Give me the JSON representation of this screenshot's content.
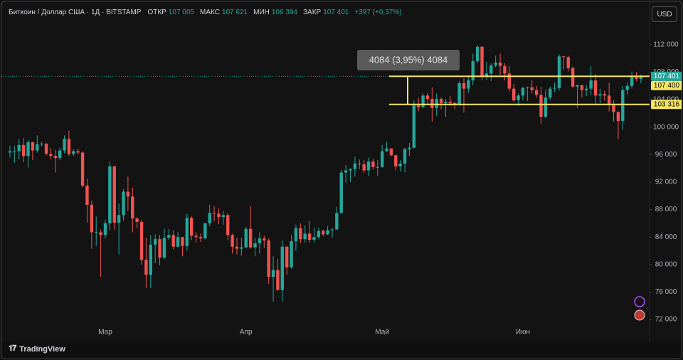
{
  "header": {
    "symbol": "Биткоин / Доллар США · 1Д · BITSTAMP",
    "open_label": "ОТКР",
    "open": "107 005",
    "high_label": "МАКС",
    "high": "107 621",
    "low_label": "МИН",
    "low": "106 394",
    "close_label": "ЗАКР",
    "close": "107 401",
    "change": "+397 (+0,37%)"
  },
  "currency": "USD",
  "brand": "TradingView",
  "chart_data": {
    "type": "candlestick",
    "categories": [
      null,
      null,
      null,
      null,
      null,
      null,
      null,
      null,
      null,
      null,
      null,
      null,
      null,
      null,
      null,
      null,
      null,
      null,
      null,
      null,
      null,
      "Мар",
      null,
      null,
      null,
      null,
      null,
      null,
      null,
      null,
      null,
      null,
      null,
      null,
      null,
      null,
      null,
      null,
      null,
      null,
      null,
      null,
      null,
      null,
      null,
      null,
      null,
      null,
      null,
      null,
      null,
      null,
      "Апр",
      null,
      null,
      null,
      null,
      null,
      null,
      null,
      null,
      null,
      null,
      null,
      null,
      null,
      null,
      null,
      null,
      null,
      null,
      null,
      null,
      null,
      null,
      null,
      null,
      null,
      null,
      null,
      null,
      null,
      "Май",
      null,
      null,
      null,
      null,
      null,
      null,
      null,
      null,
      null,
      null,
      null,
      null,
      null,
      null,
      null,
      null,
      null,
      null,
      null,
      null,
      null,
      null,
      null,
      null,
      null,
      null,
      null,
      null,
      null,
      null,
      "Июн",
      null,
      null,
      null,
      null,
      null,
      null,
      null,
      null,
      null,
      null,
      null,
      null,
      null,
      null,
      null,
      null,
      null,
      null,
      null,
      null,
      null,
      null,
      null,
      null,
      null,
      null
    ],
    "open": [
      96300,
      96500,
      96500,
      97400,
      95800,
      97800,
      96600,
      97500,
      97600,
      96100,
      95800,
      95500,
      96600,
      98300,
      96100,
      96500,
      96300,
      91500,
      88700,
      84700,
      84700,
      84300,
      86000,
      94300,
      86100,
      87200,
      90600,
      89900,
      86700,
      86200,
      80700,
      78500,
      82900,
      83700,
      81000,
      83900,
      84300,
      82600,
      84000,
      82700,
      86800,
      84200,
      84000,
      83800,
      86000,
      87500,
      87400,
      86900,
      87200,
      84300,
      82600,
      82300,
      82500,
      85200,
      82500,
      83100,
      83800,
      83500,
      78200,
      79200,
      76300,
      82600,
      79600,
      83400,
      85300,
      83700,
      84500,
      83600,
      84000,
      84900,
      84400,
      85000,
      85100,
      87500,
      93400,
      93700,
      93900,
      94700,
      94600,
      93700,
      95000,
      94200,
      94200,
      96500,
      96900,
      95900,
      94300,
      94700,
      96800,
      97000,
      103200,
      102900,
      104600,
      104100,
      102800,
      104100,
      103500,
      103700,
      103500,
      103200,
      106400,
      105600,
      106800,
      109600,
      111700,
      107300,
      107800,
      109000,
      109400,
      108900,
      107800,
      105600,
      103900,
      104600,
      105700,
      105800,
      105400,
      104700,
      101500,
      104300,
      105600,
      105700,
      110300,
      110200,
      108600,
      105900,
      106100,
      105400,
      105600,
      106800,
      104600,
      104800,
      104600,
      103300,
      102200,
      100900,
      105400,
      106000,
      107300,
      107005
    ],
    "high": [
      97300,
      97300,
      98300,
      98400,
      98100,
      97900,
      98800,
      97900,
      97700,
      97000,
      96700,
      97000,
      98800,
      99500,
      96800,
      96900,
      96500,
      92500,
      89300,
      87000,
      85100,
      86500,
      95000,
      94400,
      88900,
      91000,
      92800,
      91200,
      86900,
      86500,
      83900,
      84300,
      84400,
      84300,
      85200,
      85200,
      85000,
      84700,
      84000,
      87400,
      87000,
      84700,
      84500,
      86100,
      88700,
      88500,
      88200,
      87800,
      87500,
      84500,
      83900,
      83900,
      85500,
      88500,
      83900,
      84700,
      84200,
      83800,
      81200,
      80800,
      83500,
      82700,
      84300,
      85800,
      86000,
      85700,
      86400,
      85400,
      85400,
      85100,
      85600,
      85300,
      88400,
      93800,
      94500,
      94000,
      95700,
      95300,
      95200,
      95600,
      95400,
      95200,
      97400,
      97900,
      96900,
      96000,
      95200,
      97000,
      97700,
      103900,
      104300,
      104900,
      105000,
      105800,
      104900,
      104300,
      104100,
      104500,
      103700,
      106700,
      107100,
      107500,
      110700,
      111900,
      111800,
      109500,
      109300,
      110400,
      110700,
      109300,
      108900,
      106300,
      104900,
      105900,
      105900,
      106800,
      106000,
      105900,
      105400,
      105900,
      106500,
      110600,
      110400,
      110400,
      108800,
      106200,
      106200,
      106100,
      108900,
      107700,
      105600,
      105300,
      106500,
      103900,
      102300,
      106000,
      106500,
      108100,
      108000,
      107621
    ],
    "low": [
      95600,
      94800,
      95300,
      94900,
      94100,
      95200,
      96300,
      97200,
      95900,
      95300,
      93400,
      95200,
      96200,
      95800,
      95800,
      96000,
      91200,
      86100,
      82300,
      82700,
      78200,
      83800,
      85000,
      85100,
      81500,
      86400,
      87800,
      84700,
      85300,
      80000,
      76600,
      76600,
      80200,
      79900,
      80800,
      83600,
      82200,
      82500,
      81200,
      82000,
      83600,
      83200,
      83300,
      83700,
      85600,
      86300,
      85900,
      85800,
      83500,
      81600,
      81500,
      81300,
      82400,
      82300,
      81200,
      81600,
      82400,
      77200,
      74600,
      76200,
      74600,
      78500,
      79400,
      82000,
      83100,
      83200,
      83200,
      83100,
      83700,
      84100,
      84300,
      83900,
      85100,
      87500,
      91900,
      92000,
      92800,
      93900,
      93300,
      92900,
      93800,
      92900,
      94100,
      96400,
      95800,
      93700,
      93500,
      93400,
      95800,
      96900,
      102300,
      102800,
      103400,
      100800,
      101600,
      102600,
      101500,
      103100,
      102600,
      103100,
      102100,
      105000,
      106100,
      109300,
      106800,
      106900,
      106700,
      108700,
      107600,
      106800,
      105200,
      103700,
      103100,
      103900,
      103800,
      104900,
      104300,
      100400,
      101300,
      103900,
      105100,
      105300,
      108400,
      108100,
      105700,
      102800,
      104300,
      104500,
      104700,
      103400,
      103500,
      103900,
      102300,
      100800,
      98200,
      99600,
      104700,
      105600,
      106700,
      106394
    ],
    "close": [
      96500,
      96500,
      97400,
      95800,
      97800,
      96600,
      97500,
      97600,
      96100,
      95800,
      95500,
      96600,
      98300,
      96100,
      96500,
      96300,
      91500,
      88700,
      84700,
      84700,
      84300,
      86000,
      94300,
      86100,
      87200,
      90600,
      89900,
      86700,
      86200,
      80700,
      78500,
      82900,
      83700,
      81000,
      83900,
      84300,
      82600,
      84000,
      82700,
      86800,
      84200,
      84000,
      83800,
      86000,
      87500,
      87400,
      86900,
      87200,
      84300,
      82600,
      82300,
      82500,
      85200,
      82500,
      83100,
      83800,
      83500,
      78200,
      79200,
      76300,
      82600,
      79600,
      83400,
      85300,
      83700,
      84500,
      83600,
      84000,
      84900,
      84400,
      85000,
      85100,
      87500,
      93400,
      93700,
      93900,
      94700,
      94600,
      93700,
      95000,
      94200,
      94200,
      96500,
      96900,
      95900,
      94300,
      94700,
      96800,
      97000,
      103200,
      102900,
      104600,
      104100,
      102800,
      104100,
      103500,
      103700,
      103500,
      103200,
      106400,
      105600,
      106800,
      109600,
      111700,
      107300,
      107800,
      109000,
      109400,
      108900,
      107800,
      105600,
      103900,
      104600,
      105700,
      105800,
      105400,
      104700,
      101500,
      104300,
      105600,
      105700,
      110300,
      110200,
      108600,
      105900,
      106100,
      105400,
      105600,
      106800,
      104600,
      104800,
      104600,
      103300,
      102200,
      100900,
      105400,
      106000,
      107300,
      107005,
      107401
    ],
    "up_color": "#26a69a",
    "down_color": "#ef5350",
    "ylim": [
      68800,
      118300
    ],
    "yticks": [
      {
        "value": 72000,
        "label": "72 000"
      },
      {
        "value": 76000,
        "label": "76 000"
      },
      {
        "value": 80000,
        "label": "80 000"
      },
      {
        "value": 84000,
        "label": "84 000"
      },
      {
        "value": 88000,
        "label": "88 000"
      },
      {
        "value": 92000,
        "label": "92 000"
      },
      {
        "value": 96000,
        "label": "96 000"
      },
      {
        "value": 100000,
        "label": "100 000"
      },
      {
        "value": 104000,
        "label": "104 000"
      },
      {
        "value": 108000,
        "label": "108 000"
      },
      {
        "value": 112000,
        "label": "112 000"
      }
    ],
    "last_price": {
      "value": 107401,
      "label": "107 401"
    },
    "levels": [
      {
        "value": 107400,
        "label": "107 400"
      },
      {
        "value": 103316,
        "label": "103 316"
      }
    ],
    "level_color": "#f5e663",
    "measure_label": "4084 (3,95%) 4084"
  }
}
